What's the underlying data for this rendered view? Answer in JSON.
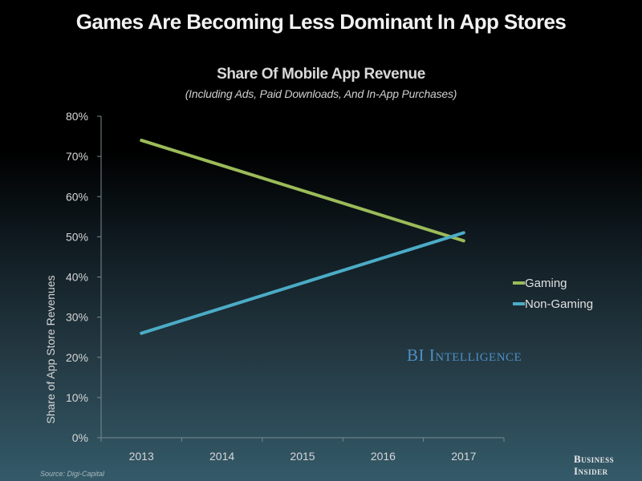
{
  "header": {
    "title": "Games Are Becoming Less Dominant In App Stores"
  },
  "chart_data": {
    "type": "line",
    "title": "Share Of Mobile App Revenue",
    "subtitle": "(Including Ads, Paid Downloads, And In-App Purchases)",
    "xlabel": "",
    "ylabel": "Share of App Store Revenues",
    "categories": [
      "2013",
      "2014",
      "2015",
      "2016",
      "2017"
    ],
    "ylim": [
      0,
      80
    ],
    "yticks": [
      0,
      10,
      20,
      30,
      40,
      50,
      60,
      70,
      80
    ],
    "ytick_labels": [
      "0%",
      "10%",
      "20%",
      "30%",
      "40%",
      "50%",
      "60%",
      "70%",
      "80%"
    ],
    "grid": false,
    "legend_position": "right",
    "series": [
      {
        "name": "Gaming",
        "color": "#9bbb59",
        "points": [
          {
            "x": "2013",
            "y": 74
          },
          {
            "x": "2017",
            "y": 49
          }
        ]
      },
      {
        "name": "Non-Gaming",
        "color": "#4bacc6",
        "points": [
          {
            "x": "2013",
            "y": 26
          },
          {
            "x": "2017",
            "y": 51
          }
        ]
      }
    ]
  },
  "watermark": "BI Intelligence",
  "source": "Source: Digi-Capital",
  "brand": {
    "line1": "Business",
    "line2": "Insider"
  },
  "colors": {
    "gaming": "#9bbb59",
    "non_gaming": "#4bacc6",
    "watermark": "#4f8ec3"
  }
}
